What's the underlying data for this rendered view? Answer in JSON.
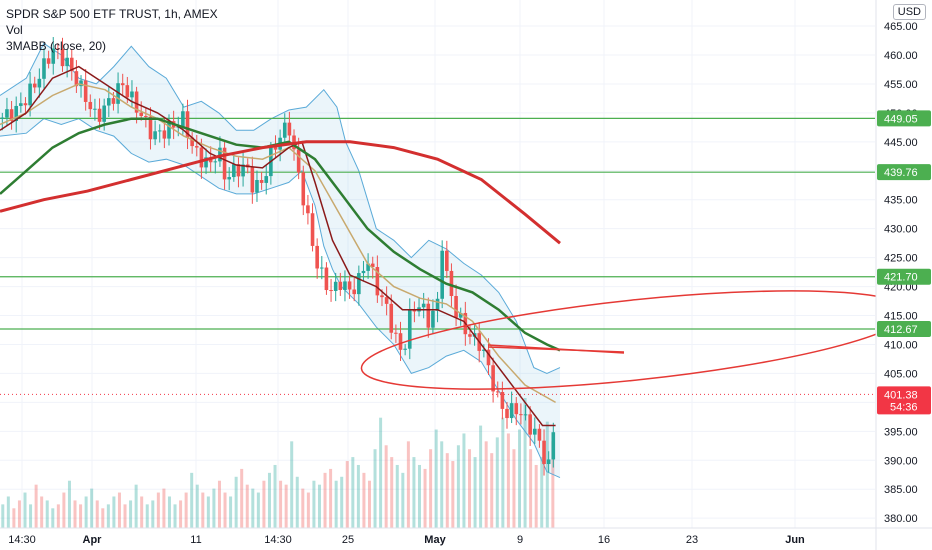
{
  "legend": {
    "symbol": "SPDR S&P 500 ETF TRUST, 1h, AMEX",
    "volume": "Vol",
    "indicator": "3MABB (close, 20)"
  },
  "currency": "USD",
  "colors": {
    "up": "#26a69a",
    "down": "#ef5350",
    "hline": "#4caf50",
    "ma_fast": "#8b1a1a",
    "ma_mid": "#c8a96e",
    "ma_slow": "#2e7d32",
    "ma_long": "#d32f2f",
    "band": "#5aaad8",
    "ellipse": "#e53935",
    "last_price": "#f23645"
  },
  "chart_data": {
    "type": "candlestick",
    "y_ticks": [
      "465.00",
      "460.00",
      "455.00",
      "450.00",
      "445.00",
      "440.00",
      "435.00",
      "430.00",
      "425.00",
      "420.00",
      "415.00",
      "410.00",
      "405.00",
      "400.00",
      "395.00",
      "390.00",
      "385.00",
      "380.00"
    ],
    "y_range": [
      378.3,
      469.5
    ],
    "x_ticks": [
      "14:30",
      "Apr",
      "11",
      "14:30",
      "25",
      "May",
      "9",
      "16",
      "23",
      "Jun"
    ],
    "price_lines": [
      "449.05",
      "439.76",
      "421.70",
      "412.67"
    ],
    "last_price": {
      "price": "401.38",
      "countdown": "54:36"
    },
    "close_path": [
      [
        0,
        449
      ],
      [
        0.02,
        450.5
      ],
      [
        0.04,
        455
      ],
      [
        0.06,
        461
      ],
      [
        0.075,
        459
      ],
      [
        0.09,
        455
      ],
      [
        0.1,
        452
      ],
      [
        0.11,
        449
      ],
      [
        0.13,
        453
      ],
      [
        0.14,
        455
      ],
      [
        0.16,
        450
      ],
      [
        0.175,
        446
      ],
      [
        0.19,
        447
      ],
      [
        0.21,
        449
      ],
      [
        0.22,
        444
      ],
      [
        0.23,
        442
      ],
      [
        0.24,
        441
      ],
      [
        0.25,
        444
      ],
      [
        0.255,
        439
      ],
      [
        0.27,
        440
      ],
      [
        0.28,
        441
      ],
      [
        0.29,
        437
      ],
      [
        0.3,
        438
      ],
      [
        0.31,
        443
      ],
      [
        0.32,
        446
      ],
      [
        0.33,
        448
      ],
      [
        0.335,
        444
      ],
      [
        0.34,
        440
      ],
      [
        0.35,
        433
      ],
      [
        0.36,
        425
      ],
      [
        0.37,
        421
      ],
      [
        0.38,
        419
      ],
      [
        0.39,
        421
      ],
      [
        0.4,
        419
      ],
      [
        0.41,
        421
      ],
      [
        0.42,
        425
      ],
      [
        0.43,
        420
      ],
      [
        0.44,
        417
      ],
      [
        0.45,
        412
      ],
      [
        0.46,
        408
      ],
      [
        0.47,
        416
      ],
      [
        0.48,
        417
      ],
      [
        0.49,
        414
      ],
      [
        0.5,
        417
      ],
      [
        0.505,
        428
      ],
      [
        0.51,
        422
      ],
      [
        0.52,
        416
      ],
      [
        0.53,
        413
      ],
      [
        0.54,
        411
      ],
      [
        0.55,
        410
      ],
      [
        0.56,
        405
      ],
      [
        0.57,
        400
      ],
      [
        0.58,
        398
      ],
      [
        0.59,
        399
      ],
      [
        0.6,
        397
      ],
      [
        0.61,
        395
      ],
      [
        0.62,
        392
      ],
      [
        0.625,
        388
      ],
      [
        0.63,
        390
      ],
      [
        0.635,
        401.4
      ]
    ],
    "ma_fast_path": [
      [
        0,
        447
      ],
      [
        0.03,
        450
      ],
      [
        0.06,
        456
      ],
      [
        0.09,
        458
      ],
      [
        0.12,
        455
      ],
      [
        0.15,
        452
      ],
      [
        0.18,
        450
      ],
      [
        0.21,
        447
      ],
      [
        0.24,
        443
      ],
      [
        0.27,
        441
      ],
      [
        0.3,
        440.5
      ],
      [
        0.33,
        444
      ],
      [
        0.345,
        445
      ],
      [
        0.36,
        438
      ],
      [
        0.38,
        428
      ],
      [
        0.4,
        422
      ],
      [
        0.43,
        420
      ],
      [
        0.46,
        416
      ],
      [
        0.5,
        416
      ],
      [
        0.53,
        414
      ],
      [
        0.56,
        408
      ],
      [
        0.59,
        402
      ],
      [
        0.62,
        396
      ],
      [
        0.635,
        396
      ]
    ],
    "ma_mid_path": [
      [
        0,
        448
      ],
      [
        0.03,
        450
      ],
      [
        0.06,
        453
      ],
      [
        0.09,
        455
      ],
      [
        0.12,
        454
      ],
      [
        0.15,
        451
      ],
      [
        0.18,
        449
      ],
      [
        0.21,
        446
      ],
      [
        0.24,
        444
      ],
      [
        0.27,
        442.5
      ],
      [
        0.3,
        442
      ],
      [
        0.33,
        444
      ],
      [
        0.36,
        440
      ],
      [
        0.39,
        432
      ],
      [
        0.42,
        424
      ],
      [
        0.45,
        420
      ],
      [
        0.48,
        418
      ],
      [
        0.51,
        417
      ],
      [
        0.54,
        414
      ],
      [
        0.57,
        408
      ],
      [
        0.6,
        403
      ],
      [
        0.635,
        400
      ]
    ],
    "ma_slow_path": [
      [
        0,
        436
      ],
      [
        0.03,
        440
      ],
      [
        0.06,
        444
      ],
      [
        0.09,
        446.5
      ],
      [
        0.12,
        448
      ],
      [
        0.15,
        449
      ],
      [
        0.18,
        449
      ],
      [
        0.21,
        447.5
      ],
      [
        0.24,
        446
      ],
      [
        0.27,
        444.5
      ],
      [
        0.3,
        444
      ],
      [
        0.33,
        445
      ],
      [
        0.36,
        442
      ],
      [
        0.39,
        436
      ],
      [
        0.42,
        430
      ],
      [
        0.45,
        426
      ],
      [
        0.48,
        423
      ],
      [
        0.51,
        420.5
      ],
      [
        0.54,
        419
      ],
      [
        0.57,
        416
      ],
      [
        0.6,
        412
      ],
      [
        0.625,
        410
      ],
      [
        0.64,
        409
      ]
    ],
    "ma_long_path": [
      [
        0,
        433
      ],
      [
        0.05,
        435
      ],
      [
        0.1,
        436.5
      ],
      [
        0.15,
        438.5
      ],
      [
        0.2,
        440.5
      ],
      [
        0.25,
        442.5
      ],
      [
        0.3,
        444
      ],
      [
        0.35,
        445
      ],
      [
        0.4,
        445
      ],
      [
        0.45,
        444
      ],
      [
        0.5,
        442
      ],
      [
        0.55,
        438.5
      ],
      [
        0.6,
        432.5
      ],
      [
        0.64,
        427.5
      ]
    ],
    "band_upper_path": [
      [
        0,
        453
      ],
      [
        0.03,
        456
      ],
      [
        0.05,
        462
      ],
      [
        0.07,
        460
      ],
      [
        0.09,
        456
      ],
      [
        0.11,
        455
      ],
      [
        0.13,
        458
      ],
      [
        0.15,
        461.5
      ],
      [
        0.17,
        458
      ],
      [
        0.19,
        456
      ],
      [
        0.21,
        451
      ],
      [
        0.23,
        452
      ],
      [
        0.25,
        450
      ],
      [
        0.27,
        447
      ],
      [
        0.29,
        447
      ],
      [
        0.31,
        449
      ],
      [
        0.33,
        450.5
      ],
      [
        0.35,
        451
      ],
      [
        0.37,
        454
      ],
      [
        0.385,
        451
      ],
      [
        0.395,
        445
      ],
      [
        0.41,
        440
      ],
      [
        0.43,
        430
      ],
      [
        0.45,
        428
      ],
      [
        0.47,
        425
      ],
      [
        0.49,
        428
      ],
      [
        0.51,
        426.5
      ],
      [
        0.53,
        424
      ],
      [
        0.55,
        422
      ],
      [
        0.57,
        419
      ],
      [
        0.59,
        414
      ],
      [
        0.61,
        406
      ],
      [
        0.625,
        405
      ],
      [
        0.64,
        406
      ]
    ],
    "band_lower_path": [
      [
        0,
        446
      ],
      [
        0.03,
        446.5
      ],
      [
        0.05,
        449
      ],
      [
        0.07,
        448
      ],
      [
        0.09,
        449
      ],
      [
        0.11,
        447
      ],
      [
        0.13,
        446
      ],
      [
        0.15,
        443
      ],
      [
        0.17,
        441.5
      ],
      [
        0.19,
        442
      ],
      [
        0.21,
        441
      ],
      [
        0.23,
        439
      ],
      [
        0.25,
        437
      ],
      [
        0.27,
        436
      ],
      [
        0.29,
        436
      ],
      [
        0.31,
        437
      ],
      [
        0.33,
        438
      ],
      [
        0.345,
        440
      ],
      [
        0.36,
        434
      ],
      [
        0.37,
        427
      ],
      [
        0.38,
        423
      ],
      [
        0.39,
        420
      ],
      [
        0.41,
        417
      ],
      [
        0.43,
        413
      ],
      [
        0.45,
        410
      ],
      [
        0.47,
        405
      ],
      [
        0.49,
        406
      ],
      [
        0.51,
        408
      ],
      [
        0.53,
        409
      ],
      [
        0.55,
        407
      ],
      [
        0.57,
        402
      ],
      [
        0.59,
        397
      ],
      [
        0.61,
        393
      ],
      [
        0.625,
        388
      ],
      [
        0.64,
        387
      ]
    ],
    "volume_profile": [
      6,
      8,
      5,
      7,
      9,
      6,
      11,
      8,
      7,
      5,
      6,
      9,
      12,
      7,
      6,
      8,
      10,
      7,
      5,
      6,
      8,
      9,
      6,
      7,
      11,
      8,
      6,
      7,
      9,
      10,
      8,
      6,
      7,
      9,
      14,
      11,
      9,
      8,
      10,
      12,
      9,
      8,
      13,
      15,
      11,
      10,
      9,
      12,
      14,
      16,
      12,
      11,
      22,
      13,
      10,
      9,
      12,
      11,
      14,
      15,
      12,
      13,
      17,
      18,
      16,
      14,
      12,
      20,
      28,
      21,
      18,
      16,
      14,
      22,
      18,
      16,
      15,
      20,
      25,
      22,
      19,
      17,
      21,
      24,
      20,
      18,
      26,
      22,
      19,
      23,
      28,
      24,
      20,
      25,
      33,
      20,
      16,
      18,
      27,
      22
    ]
  }
}
